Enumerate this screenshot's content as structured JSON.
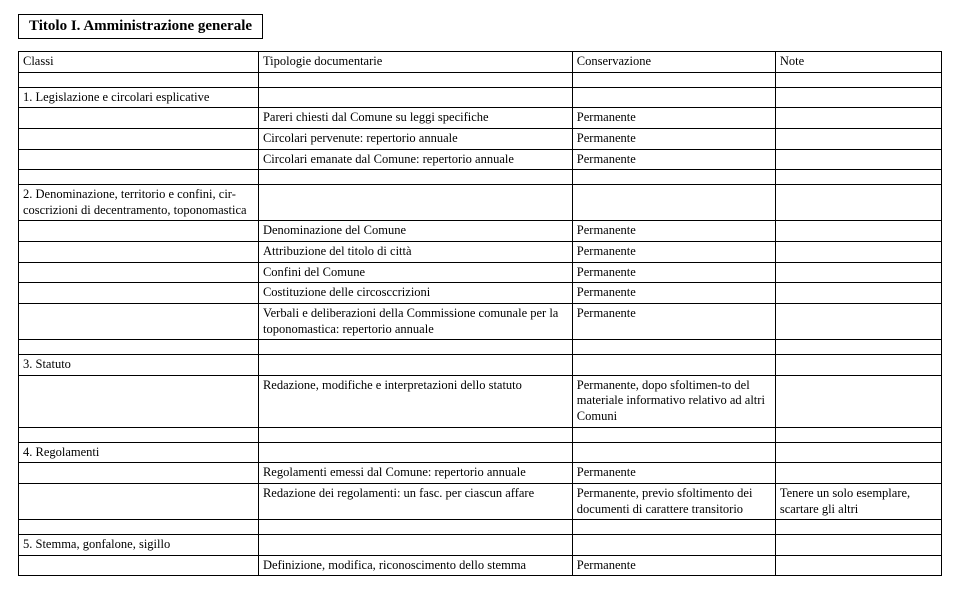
{
  "title_box": "Titolo I. Amministrazione generale",
  "headers": {
    "col1": "Classi",
    "col2": "Tipologie documentarie",
    "col3": "Conservazione",
    "col4": "Note"
  },
  "sections": [
    {
      "heading": "1. Legislazione e circolari esplicative",
      "rows": [
        {
          "c2": "Pareri chiesti dal Comune su leggi specifiche",
          "c3": "Permanente",
          "c4": ""
        },
        {
          "c2": "Circolari pervenute: repertorio annuale",
          "c3": "Permanente",
          "c4": ""
        },
        {
          "c2": "Circolari emanate dal Comune: repertorio annuale",
          "c3": "Permanente",
          "c4": ""
        }
      ]
    },
    {
      "heading": "2. Denominazione, territorio e confini, cir-coscrizioni di decentramento, toponomastica",
      "rows": [
        {
          "c2": "Denominazione del Comune",
          "c3": "Permanente",
          "c4": ""
        },
        {
          "c2": "Attribuzione del titolo di città",
          "c3": "Permanente",
          "c4": ""
        },
        {
          "c2": "Confini del Comune",
          "c3": "Permanente",
          "c4": ""
        },
        {
          "c2": "Costituzione delle circosccrizioni",
          "c3": "Permanente",
          "c4": ""
        },
        {
          "c2": "Verbali e deliberazioni della Commissione comunale per la toponomastica: repertorio annuale",
          "c3": "Permanente",
          "c4": ""
        }
      ]
    },
    {
      "heading": "3. Statuto",
      "rows": [
        {
          "c2": "Redazione, modifiche e interpretazioni dello statuto",
          "c3": "Permanente, dopo sfoltimen-to del materiale informativo relativo ad altri Comuni",
          "c4": ""
        }
      ]
    },
    {
      "heading": "4. Regolamenti",
      "rows": [
        {
          "c2": "Regolamenti emessi dal Comune: repertorio annuale",
          "c3": "Permanente",
          "c4": ""
        },
        {
          "c2": "Redazione dei regolamenti: un fasc. per ciascun affare",
          "c3": "Permanente, previo sfoltimento dei documenti di carattere transitorio",
          "c4": "Tenere un solo esemplare, scartare gli altri"
        }
      ]
    },
    {
      "heading": "5. Stemma, gonfalone, sigillo",
      "rows": [
        {
          "c2": "Definizione, modifica, riconoscimento dello stemma",
          "c3": "Permanente",
          "c4": ""
        }
      ]
    }
  ]
}
